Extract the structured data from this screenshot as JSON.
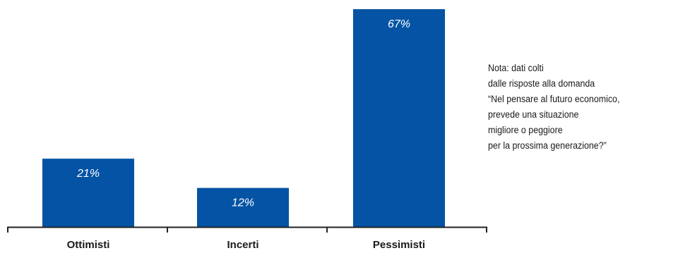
{
  "chart_data": {
    "type": "bar",
    "categories": [
      "Ottimisti",
      "Incerti",
      "Pessimisti"
    ],
    "values": [
      21,
      12,
      67
    ],
    "data_labels": [
      "21%",
      "12%",
      "67%"
    ],
    "unit": "%",
    "ylim": [
      0,
      67
    ],
    "grid": false,
    "legend": "none",
    "title": "",
    "xlabel": "",
    "ylabel": ""
  },
  "colors": {
    "bar": "#0453a4",
    "bar_label": "#ffffff",
    "axis": "#222222",
    "text": "#1a1a1a"
  },
  "note": {
    "lines": [
      "Nota: dati colti",
      "dalle risposte alla domanda",
      "“Nel pensare al futuro economico,",
      "prevede una situazione",
      "migliore o peggiore",
      "per la prossima generazione?”"
    ]
  }
}
